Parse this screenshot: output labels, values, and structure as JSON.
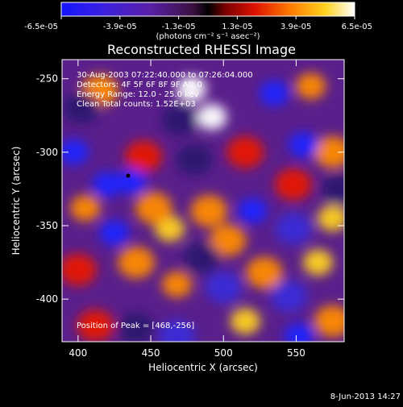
{
  "chart_data": {
    "type": "heatmap",
    "title": "Reconstructed RHESSI Image",
    "xlabel": "Heliocentric X (arcsec)",
    "ylabel": "Heliocentric Y (arcsec)",
    "xlim": [
      389,
      583
    ],
    "ylim": [
      -429,
      -237
    ],
    "xticks": [
      400,
      450,
      500,
      550
    ],
    "yticks": [
      -250,
      -300,
      -350,
      -400
    ],
    "colorbar": {
      "min": -6.5e-05,
      "max": 6.5e-05,
      "tick_values": [
        -6.5e-05,
        -3.9e-05,
        -1.3e-05,
        1.3e-05,
        3.9e-05,
        6.5e-05
      ],
      "tick_labels": [
        "-6.5e-05",
        "-3.9e-05",
        "-1.3e-05",
        "1.3e-05",
        "3.9e-05",
        "6.5e-05"
      ],
      "unit_label": "(photons cm⁻² s⁻¹ asec⁻²)"
    },
    "annotations": [
      "30-Aug-2003 07:22:40.000 to 07:26:04.000",
      "Detectors: 4F 5F 6F 8F 9F  Att 0",
      "Energy Range: 12.0 - 25.0 kev",
      "Clean    Total counts: 1.52E+03"
    ],
    "peak_label": "Position of Peak = [468,-256]",
    "peak_position": [
      468,
      -256
    ],
    "date_stamp": "8-Jun-2013 14:27",
    "blobs": [
      {
        "x": 478,
        "y": -257,
        "v": 1.0
      },
      {
        "x": 492,
        "y": -276,
        "v": 0.92
      },
      {
        "x": 415,
        "y": -258,
        "v": 0.55
      },
      {
        "x": 560,
        "y": -255,
        "v": 0.7
      },
      {
        "x": 575,
        "y": -300,
        "v": 0.55
      },
      {
        "x": 445,
        "y": -303,
        "v": 0.45
      },
      {
        "x": 515,
        "y": -300,
        "v": 0.4
      },
      {
        "x": 405,
        "y": -338,
        "v": 0.7
      },
      {
        "x": 463,
        "y": -352,
        "v": 0.85
      },
      {
        "x": 452,
        "y": -338,
        "v": 0.6
      },
      {
        "x": 503,
        "y": -360,
        "v": 0.55
      },
      {
        "x": 490,
        "y": -340,
        "v": 0.6
      },
      {
        "x": 575,
        "y": -345,
        "v": 0.8
      },
      {
        "x": 565,
        "y": -375,
        "v": 0.75
      },
      {
        "x": 528,
        "y": -382,
        "v": 0.6
      },
      {
        "x": 468,
        "y": -390,
        "v": 0.7
      },
      {
        "x": 440,
        "y": -375,
        "v": 0.6
      },
      {
        "x": 400,
        "y": -380,
        "v": 0.45
      },
      {
        "x": 515,
        "y": -415,
        "v": 0.8
      },
      {
        "x": 412,
        "y": -418,
        "v": 0.5
      },
      {
        "x": 575,
        "y": -415,
        "v": 0.55
      },
      {
        "x": 548,
        "y": -322,
        "v": 0.5
      },
      {
        "x": 420,
        "y": -322,
        "v": -0.8
      },
      {
        "x": 397,
        "y": -300,
        "v": -0.7
      },
      {
        "x": 402,
        "y": -270,
        "v": -0.45
      },
      {
        "x": 437,
        "y": -320,
        "v": -0.75
      },
      {
        "x": 425,
        "y": -355,
        "v": -0.8
      },
      {
        "x": 470,
        "y": -278,
        "v": -0.35
      },
      {
        "x": 535,
        "y": -260,
        "v": -0.7
      },
      {
        "x": 555,
        "y": -295,
        "v": -0.8
      },
      {
        "x": 520,
        "y": -340,
        "v": -0.7
      },
      {
        "x": 480,
        "y": -305,
        "v": -0.4
      },
      {
        "x": 485,
        "y": -372,
        "v": -0.45
      },
      {
        "x": 548,
        "y": -352,
        "v": -0.55
      },
      {
        "x": 545,
        "y": -398,
        "v": -0.5
      },
      {
        "x": 468,
        "y": -425,
        "v": -0.6
      },
      {
        "x": 500,
        "y": -392,
        "v": -0.55
      },
      {
        "x": 552,
        "y": -425,
        "v": -0.85
      },
      {
        "x": 440,
        "y": -420,
        "v": -0.45
      },
      {
        "x": 580,
        "y": -325,
        "v": -0.4
      }
    ]
  }
}
